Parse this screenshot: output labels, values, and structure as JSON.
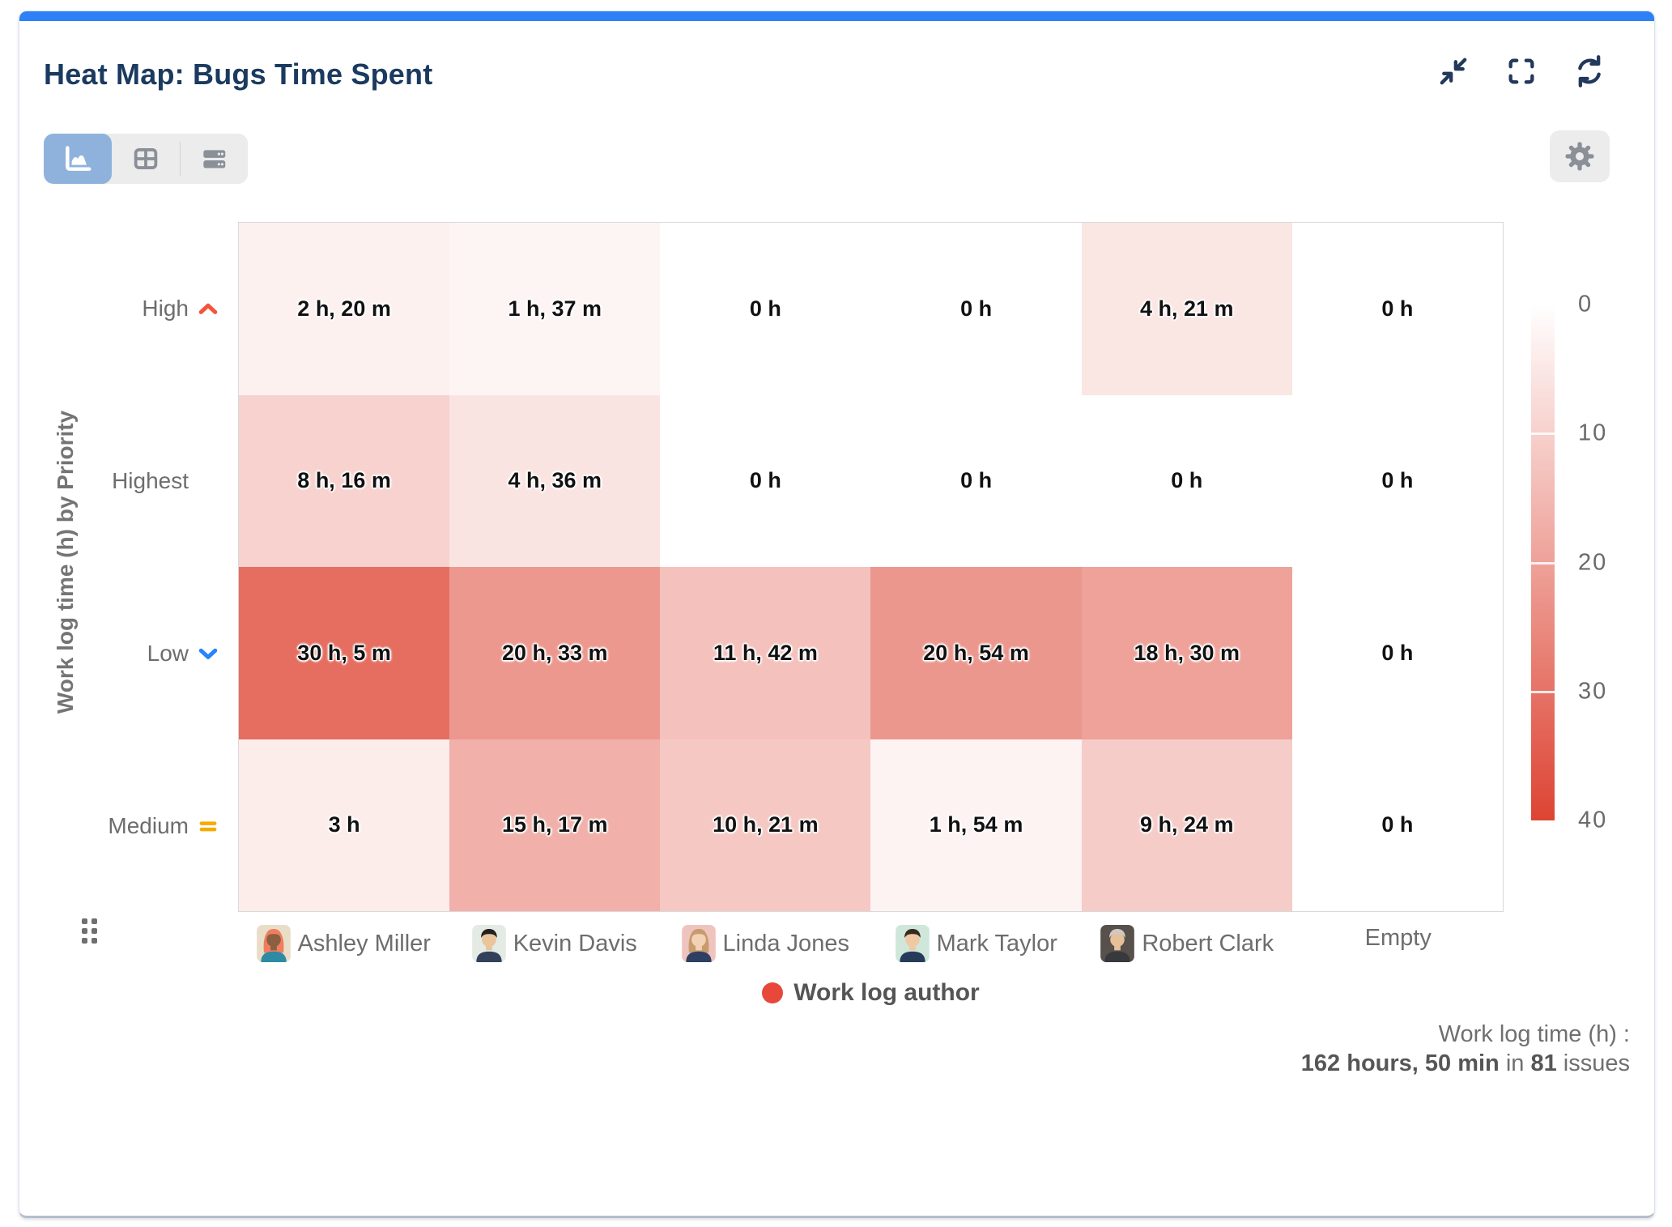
{
  "window": {
    "title": "Heat Map: Bugs Time Spent",
    "accent_color": "#2e80f7",
    "controls": [
      {
        "icon": "collapse-icon"
      },
      {
        "icon": "fullscreen-icon"
      },
      {
        "icon": "refresh-icon"
      }
    ],
    "icon_color": "#22395c"
  },
  "toolbar": {
    "view_options": [
      {
        "id": "chart-view",
        "icon": "area-chart-icon",
        "selected": true
      },
      {
        "id": "table-view",
        "icon": "table-icon",
        "selected": false
      },
      {
        "id": "list-view",
        "icon": "list-rows-icon",
        "selected": false
      }
    ],
    "selected_bg": "#8fb2dc",
    "settings_icon": "gear-icon"
  },
  "chart_data": {
    "type": "heatmap",
    "y_axis_label": "Work log time (h) by Priority",
    "x_categories": [
      {
        "label": "Ashley Miller",
        "avatar": {
          "bg": "#e9ddc8",
          "hair": "#ee7e5f",
          "skin": "#8d5f41",
          "shirt": "#2d8ba4",
          "long_hair": true
        }
      },
      {
        "label": "Kevin Davis",
        "avatar": {
          "bg": "#e3ebe4",
          "hair": "#23201d",
          "skin": "#eac49b",
          "shirt": "#32405a",
          "long_hair": false
        }
      },
      {
        "label": "Linda Jones",
        "avatar": {
          "bg": "#efc4bf",
          "hair": "#c79b6e",
          "skin": "#f2d2b2",
          "shirt": "#2f3f63",
          "long_hair": true
        }
      },
      {
        "label": "Mark Taylor",
        "avatar": {
          "bg": "#cfe7da",
          "hair": "#38291e",
          "skin": "#eec9a3",
          "shirt": "#263b5c",
          "long_hair": false
        }
      },
      {
        "label": "Robert Clark",
        "avatar": {
          "bg": "#57504b",
          "hair": "#d0cac3",
          "skin": "#e6c09a",
          "shirt": "#37393f",
          "long_hair": false
        }
      },
      {
        "label": "Empty",
        "avatar": null
      }
    ],
    "y_categories": [
      {
        "label": "High",
        "priority_icon": "priority-high-icon",
        "icon_type": "chevron-up",
        "icon_color": "#f4543c"
      },
      {
        "label": "Highest",
        "priority_icon": "priority-highest-icon",
        "icon_type": "double-chevron-up",
        "icon_color": "#f4543c"
      },
      {
        "label": "Low",
        "priority_icon": "priority-low-icon",
        "icon_type": "chevron-down",
        "icon_color": "#2684ff"
      },
      {
        "label": "Medium",
        "priority_icon": "priority-medium-icon",
        "icon_type": "equals",
        "icon_color": "#f5ab00"
      }
    ],
    "rows": [
      {
        "row": "High",
        "labels": [
          "2 h, 20 m",
          "1 h, 37 m",
          "0 h",
          "0 h",
          "4 h, 21 m",
          "0 h"
        ],
        "hours": [
          2.33,
          1.62,
          0,
          0,
          4.35,
          0
        ]
      },
      {
        "row": "Highest",
        "labels": [
          "8 h, 16 m",
          "4 h, 36 m",
          "0 h",
          "0 h",
          "0 h",
          "0 h"
        ],
        "hours": [
          8.27,
          4.6,
          0,
          0,
          0,
          0
        ]
      },
      {
        "row": "Low",
        "labels": [
          "30 h, 5 m",
          "20 h, 33 m",
          "11 h, 42 m",
          "20 h, 54 m",
          "18 h, 30 m",
          "0 h"
        ],
        "hours": [
          30.08,
          20.55,
          11.7,
          20.9,
          18.5,
          0
        ]
      },
      {
        "row": "Medium",
        "labels": [
          "3 h",
          "15 h, 17 m",
          "10 h, 21 m",
          "1 h, 54 m",
          "9 h, 24 m",
          "0 h"
        ],
        "hours": [
          3,
          15.28,
          10.35,
          1.9,
          9.4,
          0
        ]
      }
    ],
    "color_scale": {
      "min": 0,
      "max": 40,
      "tick_labels": [
        "0",
        "10",
        "20",
        "30",
        "40"
      ],
      "start_color": "#ffffff",
      "end_color": "#dd4433"
    },
    "legend": {
      "label": "Work log author",
      "marker_color": "#e8483a"
    }
  },
  "summary": {
    "line1": "Work log time (h) :",
    "line2_parts": [
      {
        "text": "162 hours, 50 min",
        "bold": true
      },
      {
        "text": " in ",
        "bold": false
      },
      {
        "text": "81",
        "bold": true
      },
      {
        "text": " issues",
        "bold": false
      }
    ]
  }
}
